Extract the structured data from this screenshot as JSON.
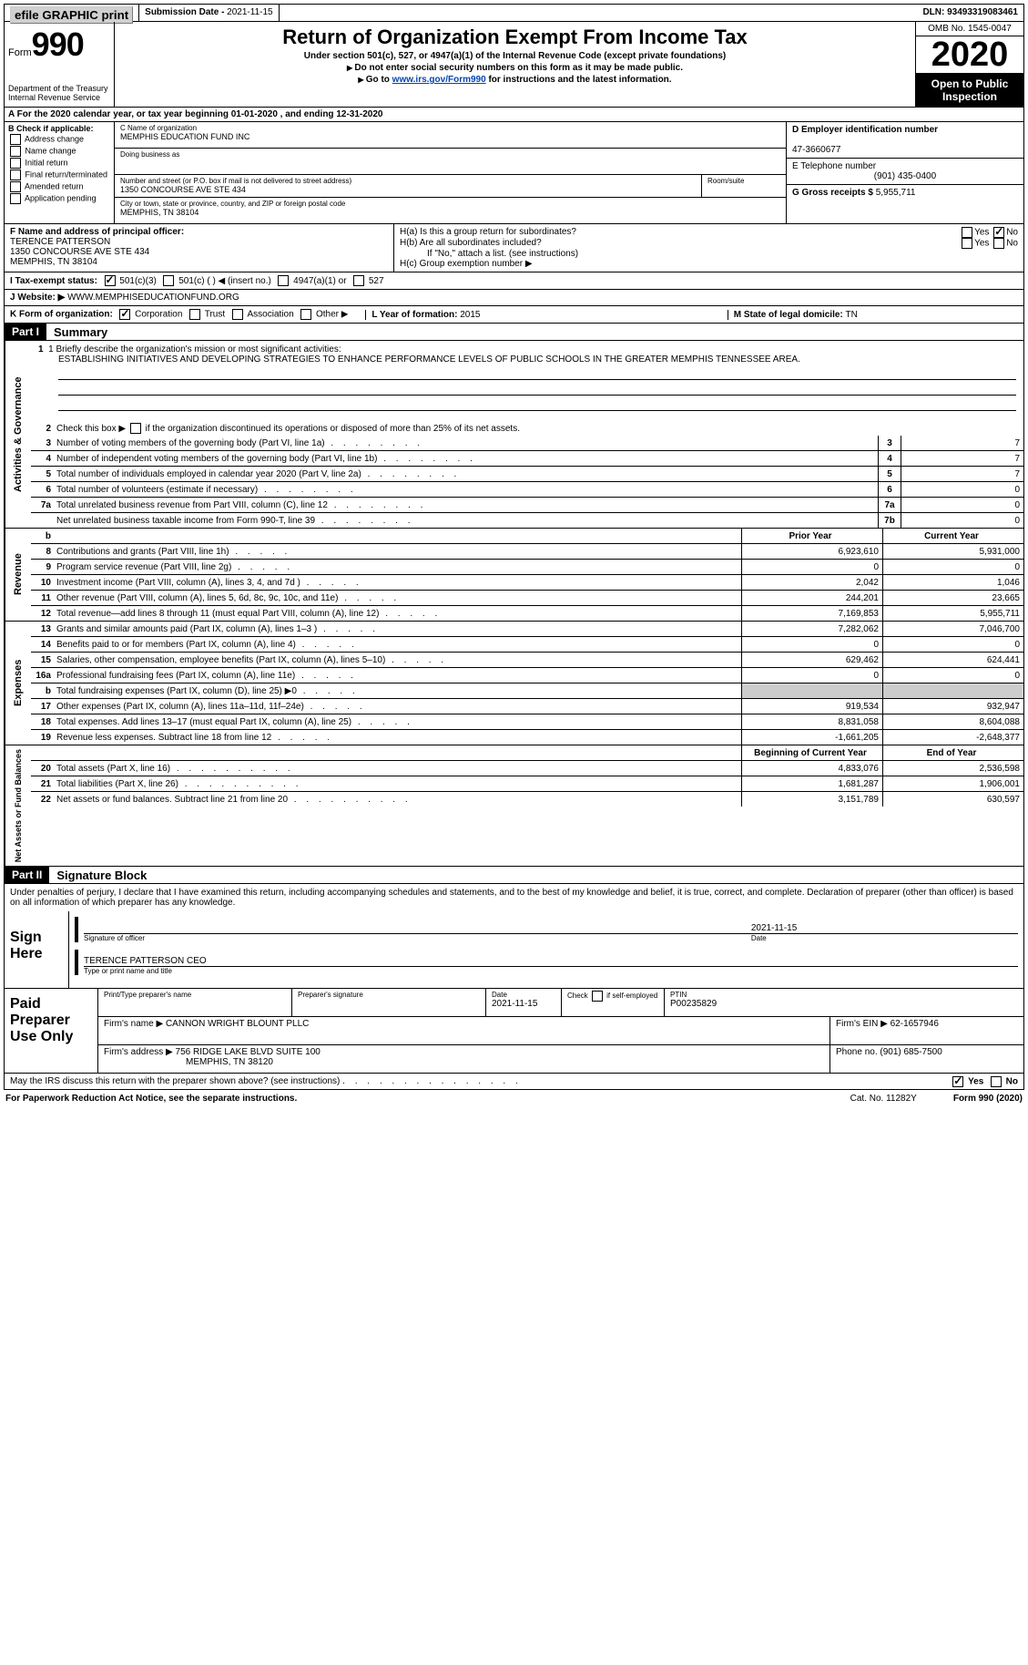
{
  "topbar": {
    "efile": "efile GRAPHIC print",
    "submission_label": "Submission Date - ",
    "submission_date": "2021-11-15",
    "dln_label": "DLN: ",
    "dln": "93493319083461"
  },
  "header": {
    "form_label": "Form",
    "form_number": "990",
    "dept": "Department of the Treasury\nInternal Revenue Service",
    "title": "Return of Organization Exempt From Income Tax",
    "subtitle": "Under section 501(c), 527, or 4947(a)(1) of the Internal Revenue Code (except private foundations)",
    "instr1": "Do not enter social security numbers on this form as it may be made public.",
    "instr2_pre": "Go to ",
    "instr2_link": "www.irs.gov/Form990",
    "instr2_post": " for instructions and the latest information.",
    "omb": "OMB No. 1545-0047",
    "year": "2020",
    "open": "Open to Public Inspection"
  },
  "rowA": "A For the 2020 calendar year, or tax year beginning 01-01-2020    , and ending 12-31-2020",
  "boxB": {
    "title": "B Check if applicable:",
    "opts": [
      "Address change",
      "Name change",
      "Initial return",
      "Final return/terminated",
      "Amended return",
      "Application pending"
    ]
  },
  "boxC": {
    "name_label": "C Name of organization",
    "name": "MEMPHIS EDUCATION FUND INC",
    "dba_label": "Doing business as",
    "addr_label": "Number and street (or P.O. box if mail is not delivered to street address)",
    "room_label": "Room/suite",
    "addr": "1350 CONCOURSE AVE STE 434",
    "city_label": "City or town, state or province, country, and ZIP or foreign postal code",
    "city": "MEMPHIS, TN  38104"
  },
  "boxD": {
    "label": "D Employer identification number",
    "val": "47-3660677"
  },
  "boxE": {
    "label": "E Telephone number",
    "val": "(901) 435-0400"
  },
  "boxG": {
    "label": "G Gross receipts $ ",
    "val": "5,955,711"
  },
  "boxF": {
    "label": "F  Name and address of principal officer:",
    "name": "TERENCE PATTERSON",
    "addr1": "1350 CONCOURSE AVE STE 434",
    "addr2": "MEMPHIS, TN  38104"
  },
  "boxH": {
    "a": "H(a)  Is this a group return for subordinates?",
    "b": "H(b)  Are all subordinates included?",
    "b_note": "If \"No,\" attach a list. (see instructions)",
    "c": "H(c)  Group exemption number ▶",
    "yes": "Yes",
    "no": "No"
  },
  "status": {
    "label": "I    Tax-exempt status:",
    "opts": [
      "501(c)(3)",
      "501(c) (  ) ◀ (insert no.)",
      "4947(a)(1) or",
      "527"
    ]
  },
  "website": {
    "label": "J   Website: ▶ ",
    "val": "WWW.MEMPHISEDUCATIONFUND.ORG"
  },
  "korg": {
    "label": "K Form of organization:",
    "opts": [
      "Corporation",
      "Trust",
      "Association",
      "Other ▶"
    ]
  },
  "boxL": {
    "label": "L Year of formation: ",
    "val": "2015"
  },
  "boxM": {
    "label": "M State of legal domicile: ",
    "val": "TN"
  },
  "partI": {
    "num": "Part I",
    "title": "Summary"
  },
  "mission": {
    "label": "1   Briefly describe the organization's mission or most significant activities:",
    "text": "ESTABLISHING INITIATIVES AND DEVELOPING STRATEGIES TO ENHANCE PERFORMANCE LEVELS OF PUBLIC SCHOOLS IN THE GREATER MEMPHIS TENNESSEE AREA."
  },
  "gov": {
    "vlabel": "Activities & Governance",
    "l2": "Check this box ▶       if the organization discontinued its operations or disposed of more than 25% of its net assets.",
    "lines": [
      {
        "n": "3",
        "t": "Number of voting members of the governing body (Part VI, line 1a)",
        "b": "3",
        "v": "7"
      },
      {
        "n": "4",
        "t": "Number of independent voting members of the governing body (Part VI, line 1b)",
        "b": "4",
        "v": "7"
      },
      {
        "n": "5",
        "t": "Total number of individuals employed in calendar year 2020 (Part V, line 2a)",
        "b": "5",
        "v": "7"
      },
      {
        "n": "6",
        "t": "Total number of volunteers (estimate if necessary)",
        "b": "6",
        "v": "0"
      },
      {
        "n": "7a",
        "t": "Total unrelated business revenue from Part VIII, column (C), line 12",
        "b": "7a",
        "v": "0"
      },
      {
        "n": "",
        "t": "Net unrelated business taxable income from Form 990-T, line 39",
        "b": "7b",
        "v": "0"
      }
    ]
  },
  "rev": {
    "vlabel": "Revenue",
    "header_b": "b",
    "prior": "Prior Year",
    "current": "Current Year",
    "lines": [
      {
        "n": "8",
        "t": "Contributions and grants (Part VIII, line 1h)",
        "p": "6,923,610",
        "c": "5,931,000"
      },
      {
        "n": "9",
        "t": "Program service revenue (Part VIII, line 2g)",
        "p": "0",
        "c": "0"
      },
      {
        "n": "10",
        "t": "Investment income (Part VIII, column (A), lines 3, 4, and 7d )",
        "p": "2,042",
        "c": "1,046"
      },
      {
        "n": "11",
        "t": "Other revenue (Part VIII, column (A), lines 5, 6d, 8c, 9c, 10c, and 11e)",
        "p": "244,201",
        "c": "23,665"
      },
      {
        "n": "12",
        "t": "Total revenue—add lines 8 through 11 (must equal Part VIII, column (A), line 12)",
        "p": "7,169,853",
        "c": "5,955,711"
      }
    ]
  },
  "exp": {
    "vlabel": "Expenses",
    "lines": [
      {
        "n": "13",
        "t": "Grants and similar amounts paid (Part IX, column (A), lines 1–3 )",
        "p": "7,282,062",
        "c": "7,046,700"
      },
      {
        "n": "14",
        "t": "Benefits paid to or for members (Part IX, column (A), line 4)",
        "p": "0",
        "c": "0"
      },
      {
        "n": "15",
        "t": "Salaries, other compensation, employee benefits (Part IX, column (A), lines 5–10)",
        "p": "629,462",
        "c": "624,441"
      },
      {
        "n": "16a",
        "t": "Professional fundraising fees (Part IX, column (A), line 11e)",
        "p": "0",
        "c": "0"
      },
      {
        "n": "b",
        "t": "Total fundraising expenses (Part IX, column (D), line 25) ▶0",
        "p": "",
        "c": "",
        "grey": true
      },
      {
        "n": "17",
        "t": "Other expenses (Part IX, column (A), lines 11a–11d, 11f–24e)",
        "p": "919,534",
        "c": "932,947"
      },
      {
        "n": "18",
        "t": "Total expenses. Add lines 13–17 (must equal Part IX, column (A), line 25)",
        "p": "8,831,058",
        "c": "8,604,088"
      },
      {
        "n": "19",
        "t": "Revenue less expenses. Subtract line 18 from line 12",
        "p": "-1,661,205",
        "c": "-2,648,377"
      }
    ]
  },
  "net": {
    "vlabel": "Net Assets or Fund Balances",
    "begin": "Beginning of Current Year",
    "end": "End of Year",
    "lines": [
      {
        "n": "20",
        "t": "Total assets (Part X, line 16)",
        "p": "4,833,076",
        "c": "2,536,598"
      },
      {
        "n": "21",
        "t": "Total liabilities (Part X, line 26)",
        "p": "1,681,287",
        "c": "1,906,001"
      },
      {
        "n": "22",
        "t": "Net assets or fund balances. Subtract line 21 from line 20",
        "p": "3,151,789",
        "c": "630,597"
      }
    ]
  },
  "partII": {
    "num": "Part II",
    "title": "Signature Block"
  },
  "sig": {
    "decl": "Under penalties of perjury, I declare that I have examined this return, including accompanying schedules and statements, and to the best of my knowledge and belief, it is true, correct, and complete. Declaration of preparer (other than officer) is based on all information of which preparer has any knowledge.",
    "sign_here": "Sign Here",
    "sig_officer": "Signature of officer",
    "date_label": "Date",
    "date": "2021-11-15",
    "name": "TERENCE PATTERSON CEO",
    "type_name": "Type or print name and title"
  },
  "prep": {
    "label": "Paid Preparer Use Only",
    "h1": "Print/Type preparer's name",
    "h2": "Preparer's signature",
    "h3": "Date",
    "h3v": "2021-11-15",
    "h4": "Check       if self-employed",
    "h5": "PTIN",
    "h5v": "P00235829",
    "firm_name_l": "Firm's name    ▶ ",
    "firm_name": "CANNON WRIGHT BLOUNT PLLC",
    "firm_ein_l": "Firm's EIN ▶ ",
    "firm_ein": "62-1657946",
    "firm_addr_l": "Firm's address ▶ ",
    "firm_addr": "756 RIDGE LAKE BLVD SUITE 100",
    "firm_city": "MEMPHIS, TN  38120",
    "phone_l": "Phone no. ",
    "phone": "(901) 685-7500"
  },
  "discuss": "May the IRS discuss this return with the preparer shown above? (see instructions)",
  "footer": {
    "l": "For Paperwork Reduction Act Notice, see the separate instructions.",
    "m": "Cat. No. 11282Y",
    "r": "Form 990 (2020)"
  }
}
